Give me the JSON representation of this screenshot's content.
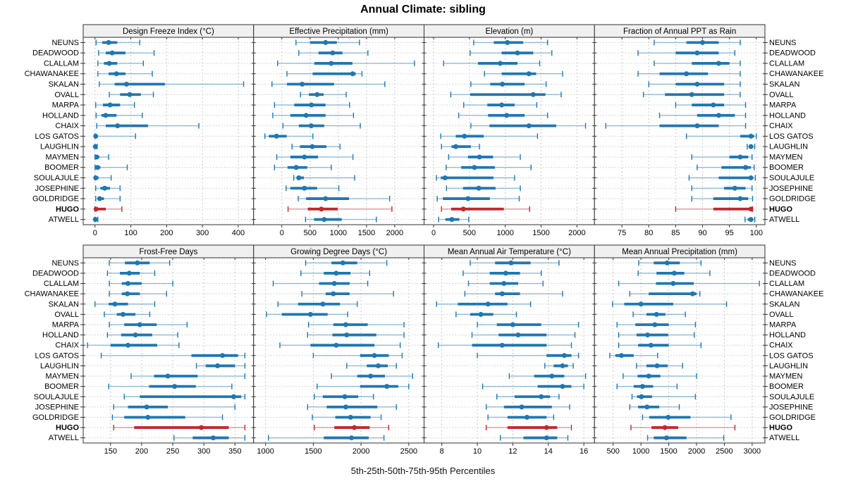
{
  "title": "Annual Climate: sibling",
  "footer": "5th-25th-50th-75th-95th Percentiles",
  "highlight_station": "HUGO",
  "colors": {
    "series": "#1f77b4",
    "highlight": "#c1292e",
    "grid": "#c9c9c9",
    "row_guide": "#cccccc",
    "header_bg": "#f0f0f0",
    "panel_border": "#2f2f2f",
    "text": "#000000"
  },
  "stations": [
    "NEUNS",
    "DEADWOOD",
    "CLALLAM",
    "CHAWANAKEE",
    "SKALAN",
    "OVALL",
    "MARPA",
    "HOLLAND",
    "CHAIX",
    "LOS GATOS",
    "LAUGHLIN",
    "MAYMEN",
    "BOOMER",
    "SOULAJULE",
    "JOSEPHINE",
    "GOLDRIDGE",
    "HUGO",
    "ATWELL"
  ],
  "chart_data": {
    "type": "dot-whisker",
    "percentile_labels": [
      "5th",
      "25th",
      "50th",
      "75th",
      "95th"
    ],
    "legend_position": "none",
    "grid": "dotted",
    "panels": [
      {
        "title": "Design Freeze Index (°C)",
        "ticks": [
          0,
          100,
          200,
          300,
          400
        ],
        "xlim": [
          -33,
          443
        ],
        "values": [
          [
            3,
            20,
            38,
            62,
            125
          ],
          [
            10,
            30,
            48,
            85,
            165
          ],
          [
            8,
            25,
            40,
            62,
            135
          ],
          [
            8,
            38,
            60,
            85,
            160
          ],
          [
            12,
            55,
            88,
            195,
            415
          ],
          [
            40,
            70,
            97,
            128,
            163
          ],
          [
            2,
            22,
            42,
            70,
            110
          ],
          [
            3,
            18,
            30,
            60,
            132
          ],
          [
            5,
            30,
            63,
            148,
            290
          ],
          [
            0,
            0,
            2,
            8,
            113
          ],
          [
            0,
            0,
            1,
            3,
            6
          ],
          [
            0,
            2,
            5,
            12,
            38
          ],
          [
            0,
            2,
            7,
            15,
            90
          ],
          [
            0,
            0,
            2,
            10,
            45
          ],
          [
            2,
            15,
            27,
            42,
            70
          ],
          [
            2,
            8,
            13,
            25,
            70
          ],
          [
            0,
            1,
            3,
            30,
            75
          ],
          [
            0,
            0,
            1,
            4,
            8
          ]
        ]
      },
      {
        "title": "Effective Precipitation (mm)",
        "ticks": [
          0,
          500,
          1000,
          1500,
          2000
        ],
        "xlim": [
          -500,
          2520
        ],
        "values": [
          [
            250,
            500,
            775,
            975,
            1375
          ],
          [
            300,
            650,
            900,
            1075,
            1525
          ],
          [
            -75,
            575,
            875,
            1250,
            2350
          ],
          [
            90,
            545,
            1255,
            1310,
            1420
          ],
          [
            -175,
            90,
            360,
            925,
            1825
          ],
          [
            330,
            480,
            625,
            740,
            1140
          ],
          [
            -130,
            220,
            525,
            775,
            1200
          ],
          [
            -160,
            150,
            430,
            775,
            1270
          ],
          [
            20,
            300,
            520,
            750,
            1390
          ],
          [
            -300,
            -230,
            -95,
            85,
            550
          ],
          [
            180,
            320,
            540,
            790,
            1030
          ],
          [
            -90,
            150,
            400,
            640,
            1260
          ],
          [
            -130,
            100,
            255,
            450,
            875
          ],
          [
            210,
            260,
            300,
            390,
            1290
          ],
          [
            75,
            150,
            400,
            625,
            1010
          ],
          [
            290,
            430,
            775,
            1190,
            1910
          ],
          [
            110,
            460,
            700,
            990,
            1950
          ],
          [
            420,
            570,
            750,
            1060,
            1675
          ]
        ]
      },
      {
        "title": "Elevation (m)",
        "ticks": [
          0,
          500,
          1000,
          1500,
          2000
        ],
        "xlim": [
          -133,
          2245
        ],
        "values": [
          [
            560,
            840,
            1030,
            1250,
            1590
          ],
          [
            510,
            950,
            1170,
            1390,
            1650
          ],
          [
            140,
            620,
            930,
            1170,
            1480
          ],
          [
            710,
            950,
            1330,
            1430,
            1800
          ],
          [
            520,
            790,
            960,
            1270,
            1570
          ],
          [
            240,
            510,
            1390,
            1560,
            1780
          ],
          [
            420,
            750,
            950,
            1130,
            1440
          ],
          [
            350,
            760,
            1020,
            1270,
            1590
          ],
          [
            520,
            780,
            1330,
            1710,
            2120
          ],
          [
            100,
            310,
            430,
            700,
            1450
          ],
          [
            110,
            250,
            310,
            520,
            640
          ],
          [
            210,
            480,
            640,
            830,
            1210
          ],
          [
            175,
            385,
            570,
            855,
            1360
          ],
          [
            40,
            100,
            160,
            835,
            1130
          ],
          [
            180,
            410,
            630,
            865,
            1210
          ],
          [
            50,
            130,
            480,
            785,
            1195
          ],
          [
            110,
            245,
            415,
            980,
            1340
          ],
          [
            70,
            165,
            255,
            360,
            490
          ]
        ]
      },
      {
        "title": "Fraction of Annual PPT as Rain",
        "ticks": [
          75,
          80,
          85,
          90,
          95,
          100
        ],
        "xlim": [
          69.9,
          101.6
        ],
        "values": [
          [
            81,
            87,
            90,
            93,
            97
          ],
          [
            78,
            85,
            89,
            93,
            96
          ],
          [
            81,
            88,
            93,
            95,
            97
          ],
          [
            78,
            82,
            87,
            91,
            97
          ],
          [
            80,
            85,
            89,
            94,
            97
          ],
          [
            79,
            83,
            88,
            94,
            97
          ],
          [
            85,
            88,
            92,
            94,
            98
          ],
          [
            82,
            89,
            93,
            96,
            98
          ],
          [
            72,
            82,
            89,
            93,
            98
          ],
          [
            87,
            97,
            99,
            99.6,
            100
          ],
          [
            98.3,
            98.7,
            99,
            99.3,
            99.7
          ],
          [
            88,
            95,
            97,
            98.5,
            99.2
          ],
          [
            89,
            93.5,
            98,
            99,
            99.6
          ],
          [
            87.5,
            93,
            99,
            99.3,
            99.8
          ],
          [
            88,
            94,
            96,
            98,
            99.2
          ],
          [
            88,
            92,
            97,
            98.5,
            99.3
          ],
          [
            85,
            92,
            99,
            99.1,
            99.3
          ],
          [
            97.9,
            98.4,
            99,
            99.3,
            99.7
          ]
        ]
      },
      {
        "title": "Frost-Free Days",
        "ticks": [
          150,
          200,
          250,
          300,
          350
        ],
        "xlim": [
          106,
          380
        ],
        "values": [
          [
            148,
            173,
            193,
            213,
            245
          ],
          [
            145,
            165,
            180,
            197,
            221
          ],
          [
            148,
            168,
            178,
            200,
            250
          ],
          [
            148,
            168,
            177,
            197,
            240
          ],
          [
            125,
            147,
            157,
            178,
            221
          ],
          [
            140,
            160,
            170,
            190,
            213
          ],
          [
            148,
            172,
            197,
            224,
            273
          ],
          [
            145,
            167,
            190,
            217,
            258
          ],
          [
            113,
            150,
            178,
            225,
            260
          ],
          [
            135,
            280,
            330,
            355,
            366
          ],
          [
            288,
            303,
            322,
            350,
            366
          ],
          [
            183,
            220,
            242,
            290,
            366
          ],
          [
            147,
            212,
            253,
            287,
            345
          ],
          [
            172,
            197,
            348,
            360,
            366
          ],
          [
            155,
            178,
            208,
            242,
            350
          ],
          [
            153,
            172,
            210,
            270,
            330
          ],
          [
            155,
            188,
            296,
            340,
            366
          ],
          [
            252,
            282,
            315,
            340,
            366
          ]
        ]
      },
      {
        "title": "Growing Degree Days (°C)",
        "ticks": [
          1000,
          1500,
          2000,
          2500
        ],
        "xlim": [
          875,
          2660
        ],
        "values": [
          [
            1420,
            1690,
            1810,
            1960,
            2270
          ],
          [
            1370,
            1610,
            1740,
            1890,
            2090
          ],
          [
            1080,
            1560,
            1720,
            1880,
            2070
          ],
          [
            1380,
            1630,
            1710,
            1880,
            2340
          ],
          [
            1130,
            1340,
            1600,
            1780,
            1960
          ],
          [
            1010,
            1170,
            1470,
            1650,
            1860
          ],
          [
            1450,
            1710,
            1840,
            2070,
            2450
          ],
          [
            1440,
            1700,
            1850,
            2160,
            2450
          ],
          [
            1150,
            1470,
            1740,
            2140,
            2410
          ],
          [
            1500,
            1990,
            2140,
            2290,
            2430
          ],
          [
            1850,
            2060,
            2180,
            2280,
            2370
          ],
          [
            1690,
            1960,
            2100,
            2250,
            2540
          ],
          [
            1540,
            1990,
            2270,
            2390,
            2500
          ],
          [
            1510,
            1600,
            1830,
            1970,
            2130
          ],
          [
            1440,
            1640,
            1840,
            2170,
            2370
          ],
          [
            1490,
            1730,
            1890,
            2100,
            2210
          ],
          [
            1510,
            1720,
            1930,
            2090,
            2290
          ],
          [
            1030,
            1610,
            1900,
            2080,
            2240
          ]
        ]
      },
      {
        "title": "Mean Annual Air Temperature (°C)",
        "ticks": [
          8,
          10,
          12,
          14,
          16
        ],
        "xlim": [
          7.0,
          16.6
        ],
        "values": [
          [
            9.6,
            11.0,
            11.9,
            13.0,
            14.6
          ],
          [
            9.2,
            10.7,
            11.6,
            12.4,
            13.6
          ],
          [
            9.5,
            10.7,
            11.5,
            12.3,
            13.7
          ],
          [
            9.3,
            11.0,
            11.4,
            12.4,
            14.8
          ],
          [
            7.7,
            8.9,
            10.6,
            11.7,
            13.0
          ],
          [
            8.8,
            9.6,
            10.2,
            10.9,
            12.2
          ],
          [
            10.0,
            11.1,
            12.0,
            13.6,
            15.7
          ],
          [
            9.7,
            11.2,
            12.3,
            13.9,
            15.5
          ],
          [
            7.8,
            9.7,
            11.4,
            13.9,
            15.3
          ],
          [
            10.0,
            13.9,
            14.9,
            15.3,
            15.7
          ],
          [
            13.8,
            14.3,
            14.8,
            15.1,
            15.4
          ],
          [
            11.8,
            13.2,
            14.2,
            14.9,
            16.1
          ],
          [
            10.3,
            13.4,
            14.8,
            15.3,
            16.0
          ],
          [
            11.1,
            12.1,
            13.6,
            14.1,
            14.6
          ],
          [
            10.5,
            11.5,
            12.5,
            14.2,
            15.2
          ],
          [
            10.6,
            11.7,
            12.8,
            13.9,
            14.3
          ],
          [
            10.5,
            11.7,
            13.9,
            14.5,
            15.3
          ],
          [
            11.3,
            12.6,
            13.9,
            14.5,
            15.1
          ]
        ]
      },
      {
        "title": "Mean Annual Precipitation (mm)",
        "ticks": [
          500,
          1000,
          1500,
          2000,
          2500,
          3000
        ],
        "xlim": [
          165,
          3230
        ],
        "values": [
          [
            960,
            1230,
            1470,
            1700,
            2080
          ],
          [
            950,
            1280,
            1600,
            1780,
            2240
          ],
          [
            600,
            1270,
            1580,
            1950,
            3130
          ],
          [
            800,
            1140,
            1930,
            2000,
            2060
          ],
          [
            490,
            700,
            1000,
            1580,
            2540
          ],
          [
            860,
            1100,
            1280,
            1440,
            1800
          ],
          [
            570,
            900,
            1250,
            1500,
            1980
          ],
          [
            600,
            920,
            1120,
            1490,
            1960
          ],
          [
            600,
            950,
            1180,
            1500,
            2080
          ],
          [
            440,
            540,
            650,
            870,
            1300
          ],
          [
            920,
            1100,
            1290,
            1480,
            1750
          ],
          [
            680,
            940,
            1140,
            1350,
            2000
          ],
          [
            570,
            870,
            1030,
            1220,
            1650
          ],
          [
            840,
            930,
            1010,
            1200,
            1980
          ],
          [
            800,
            950,
            1110,
            1330,
            1690
          ],
          [
            1030,
            1150,
            1490,
            1890,
            2620
          ],
          [
            820,
            1190,
            1430,
            1670,
            2690
          ],
          [
            1120,
            1230,
            1460,
            1820,
            2490
          ]
        ]
      }
    ]
  }
}
